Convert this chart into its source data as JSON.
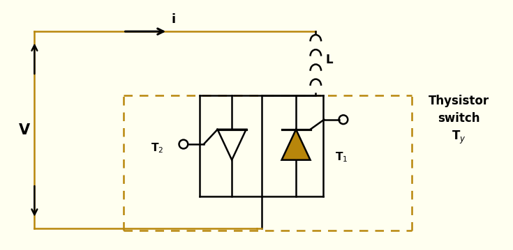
{
  "bg_color": "#fffff0",
  "line_color": "#000000",
  "orange_color": "#b8860b",
  "dashed_color": "#b8860b",
  "label_V": "V",
  "label_i": "i",
  "label_L": "L",
  "label_T1": "T$_1$",
  "label_T2": "T$_2$",
  "label_thyristor": "Thysistor\nswitch\nT$_y$",
  "figsize": [
    7.35,
    3.59
  ],
  "dpi": 100
}
